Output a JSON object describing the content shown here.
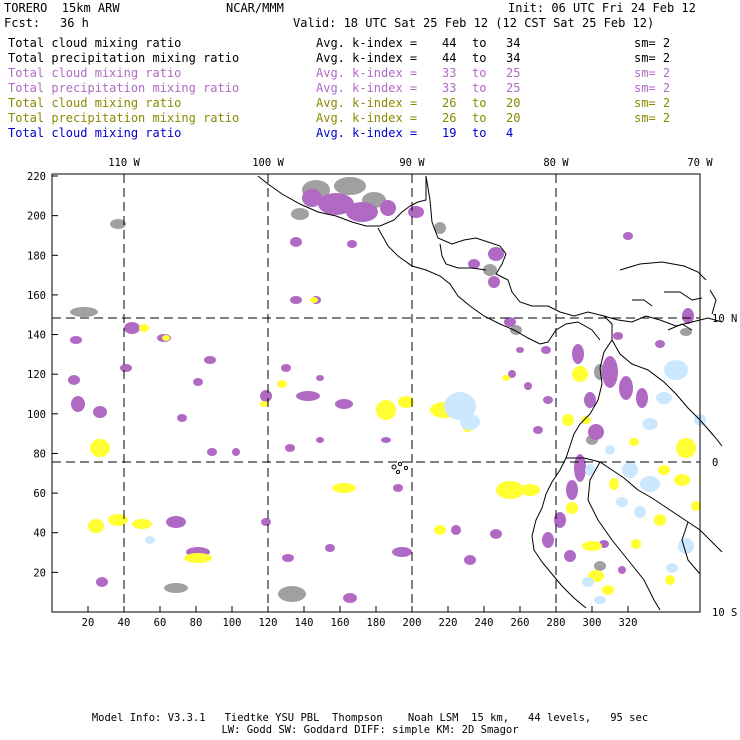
{
  "header": {
    "model": "TORERO  15km ARW",
    "org": "NCAR/MMM",
    "init": "Init: 06 UTC Fri 24 Feb 12",
    "fcst_label": "Fcst:",
    "fcst_value": "36 h",
    "valid": "Valid: 18 UTC Sat 25 Feb 12 (12 CST Sat 25 Feb 12)"
  },
  "fields": [
    {
      "name": "Total cloud mixing ratio",
      "kindex": "Avg. k-index =",
      "from": "44",
      "to_word": "to",
      "to": "34",
      "sm": "sm= 2",
      "color": "#000000"
    },
    {
      "name": "Total precipitation mixing ratio",
      "kindex": "Avg. k-index =",
      "from": "44",
      "to_word": "to",
      "to": "34",
      "sm": "sm= 2",
      "color": "#000000"
    },
    {
      "name": "Total cloud mixing ratio",
      "kindex": "Avg. k-index =",
      "from": "33",
      "to_word": "to",
      "to": "25",
      "sm": "sm= 2",
      "color": "#b06ac4"
    },
    {
      "name": "Total precipitation mixing ratio",
      "kindex": "Avg. k-index =",
      "from": "33",
      "to_word": "to",
      "to": "25",
      "sm": "sm= 2",
      "color": "#b06ac4"
    },
    {
      "name": "Total cloud mixing ratio",
      "kindex": "Avg. k-index =",
      "from": "26",
      "to_word": "to",
      "to": "20",
      "sm": "sm= 2",
      "color": "#8a8a00"
    },
    {
      "name": "Total precipitation mixing ratio",
      "kindex": "Avg. k-index =",
      "from": "26",
      "to_word": "to",
      "to": "20",
      "sm": "sm= 2",
      "color": "#8a8a00"
    },
    {
      "name": "Total cloud mixing ratio",
      "kindex": "Avg. k-index =",
      "from": "19",
      "to_word": "to",
      "to": "4",
      "sm": "",
      "color": "#0000cc"
    }
  ],
  "map": {
    "longitude_labels": [
      "110 W",
      "100 W",
      "90 W",
      "80 W",
      "70 W"
    ],
    "latitude_labels": [
      "10 N",
      "0",
      "10 S"
    ],
    "y_ticks": [
      "20",
      "40",
      "60",
      "80",
      "100",
      "120",
      "140",
      "160",
      "180",
      "200",
      "220"
    ],
    "x_ticks": [
      "20",
      "40",
      "60",
      "80",
      "100",
      "120",
      "140",
      "160",
      "180",
      "200",
      "220",
      "240",
      "260",
      "280",
      "300",
      "320"
    ],
    "colors": {
      "gray": "#a0a0a0",
      "purple": "#b06ac4",
      "yellow": "#ffff33",
      "lightblue": "#cce8ff",
      "coast": "#000000",
      "gridline": "#000000"
    }
  },
  "footer": {
    "line1": "Model Info: V3.3.1   Tiedtke YSU PBL  Thompson    Noah LSM  15 km,   44 levels,   95 sec",
    "line2": "LW: Godd SW: Goddard DIFF: simple KM: 2D Smagor"
  }
}
